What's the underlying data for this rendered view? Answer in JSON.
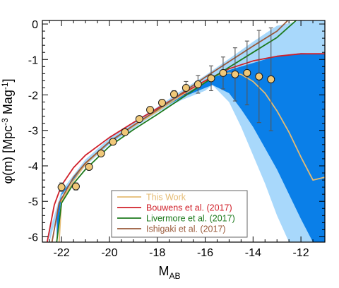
{
  "chart_data": {
    "type": "line",
    "title": "",
    "xlabel": {
      "main": "M",
      "sub": "AB"
    },
    "ylabel": {
      "pre": "φ(m) [Mpc",
      "sup1": "-3",
      "mid": " Mag",
      "sup2": "-1",
      "post": "]"
    },
    "xlim": [
      -22.8,
      -11
    ],
    "ylim": [
      -6.15,
      0.1
    ],
    "x_ticks": [
      -22,
      -20,
      -18,
      -16,
      -14,
      -12
    ],
    "y_ticks": [
      0,
      -1,
      -2,
      -3,
      -4,
      -5,
      -6
    ],
    "x_tick_labels": [
      "-22",
      "-20",
      "-18",
      "-16",
      "-14",
      "-12"
    ],
    "y_tick_labels": [
      "0",
      "-1",
      "-2",
      "-3",
      "-4",
      "-5",
      "-6"
    ],
    "grid": false,
    "legend_position": "lower-center",
    "bands": [
      {
        "color": "#a8d8fb",
        "upper": [
          [
            -22.5,
            -5.85
          ],
          [
            -22,
            -4.7
          ],
          [
            -21,
            -3.82
          ],
          [
            -20,
            -3.22
          ],
          [
            -19,
            -2.76
          ],
          [
            -18,
            -2.34
          ],
          [
            -17,
            -1.88
          ],
          [
            -16,
            -1.45
          ],
          [
            -15,
            -0.98
          ],
          [
            -14,
            -0.5
          ],
          [
            -13,
            -0.05
          ],
          [
            -12,
            0.1
          ],
          [
            -11,
            0.1
          ]
        ],
        "lower": [
          [
            -22.5,
            -6.15
          ],
          [
            -22,
            -4.85
          ],
          [
            -21,
            -4.0
          ],
          [
            -20,
            -3.4
          ],
          [
            -19,
            -2.95
          ],
          [
            -18,
            -2.5
          ],
          [
            -17,
            -2.15
          ],
          [
            -16,
            -1.88
          ],
          [
            -15.7,
            -1.72
          ],
          [
            -15,
            -2.2
          ],
          [
            -14.5,
            -2.9
          ],
          [
            -14,
            -3.7
          ],
          [
            -13.5,
            -4.5
          ],
          [
            -13,
            -5.4
          ],
          [
            -12.5,
            -6.15
          ],
          [
            -11,
            -6.15
          ]
        ]
      },
      {
        "color": "#0a7fe8",
        "upper": [
          [
            -22.2,
            -5.35
          ],
          [
            -22,
            -4.78
          ],
          [
            -21,
            -3.92
          ],
          [
            -20,
            -3.31
          ],
          [
            -19,
            -2.85
          ],
          [
            -18,
            -2.42
          ],
          [
            -17,
            -2.0
          ],
          [
            -16,
            -1.6
          ],
          [
            -15.5,
            -1.42
          ],
          [
            -15,
            -1.3
          ],
          [
            -14,
            -1.1
          ],
          [
            -13,
            -0.9
          ],
          [
            -12,
            -0.82
          ],
          [
            -11,
            -0.84
          ]
        ],
        "lower": [
          [
            -22.2,
            -6.15
          ],
          [
            -22,
            -4.82
          ],
          [
            -21,
            -3.96
          ],
          [
            -20,
            -3.36
          ],
          [
            -19,
            -2.9
          ],
          [
            -18,
            -2.45
          ],
          [
            -17,
            -2.08
          ],
          [
            -16,
            -1.8
          ],
          [
            -15.7,
            -1.72
          ],
          [
            -15,
            -1.95
          ],
          [
            -14.5,
            -2.4
          ],
          [
            -14,
            -2.9
          ],
          [
            -13.5,
            -3.5
          ],
          [
            -13,
            -4.1
          ],
          [
            -12.5,
            -4.8
          ],
          [
            -12,
            -5.5
          ],
          [
            -11.5,
            -6.15
          ],
          [
            -11,
            -6.15
          ]
        ]
      }
    ],
    "series": [
      {
        "name": "This Work",
        "color": "#e5bb72",
        "points": [
          [
            -22.1,
            -6.15
          ],
          [
            -22,
            -5.0
          ],
          [
            -21.5,
            -4.42
          ],
          [
            -21,
            -3.95
          ],
          [
            -20,
            -3.32
          ],
          [
            -19,
            -2.88
          ],
          [
            -18,
            -2.46
          ],
          [
            -17,
            -2.02
          ],
          [
            -16,
            -1.62
          ],
          [
            -15.5,
            -1.44
          ],
          [
            -15,
            -1.38
          ],
          [
            -14.5,
            -1.42
          ],
          [
            -14,
            -1.62
          ],
          [
            -13.5,
            -1.95
          ],
          [
            -13,
            -2.45
          ],
          [
            -12.5,
            -3.05
          ],
          [
            -12,
            -3.75
          ],
          [
            -11.5,
            -4.4
          ],
          [
            -11,
            -4.32
          ]
        ]
      },
      {
        "name": "Bouwens et al. (2017)",
        "color": "#d0202a",
        "points": [
          [
            -22.6,
            -6.15
          ],
          [
            -22.3,
            -5.1
          ],
          [
            -22,
            -4.55
          ],
          [
            -21.5,
            -4.05
          ],
          [
            -21,
            -3.7
          ],
          [
            -20,
            -3.2
          ],
          [
            -19,
            -2.78
          ],
          [
            -18,
            -2.38
          ],
          [
            -17,
            -1.98
          ],
          [
            -16,
            -1.6
          ],
          [
            -15,
            -1.26
          ],
          [
            -14,
            -1.04
          ],
          [
            -13,
            -0.91
          ],
          [
            -12,
            -0.84
          ],
          [
            -11,
            -0.84
          ]
        ]
      },
      {
        "name": "Livermore et al. (2017)",
        "color": "#1d7a1d",
        "points": [
          [
            -22.2,
            -6.15
          ],
          [
            -22,
            -5.05
          ],
          [
            -21.5,
            -4.5
          ],
          [
            -21,
            -4.1
          ],
          [
            -20,
            -3.45
          ],
          [
            -19,
            -2.98
          ],
          [
            -18,
            -2.55
          ],
          [
            -17,
            -2.1
          ],
          [
            -16,
            -1.65
          ],
          [
            -15,
            -1.22
          ],
          [
            -14,
            -0.8
          ],
          [
            -13,
            -0.38
          ],
          [
            -12.2,
            0.1
          ]
        ]
      },
      {
        "name": "Ishigaki et al. (2017)",
        "color": "#9a5a3a",
        "points": [
          [
            -22.4,
            -6.15
          ],
          [
            -22.1,
            -5.05
          ],
          [
            -21.5,
            -4.32
          ],
          [
            -21,
            -3.92
          ],
          [
            -20,
            -3.32
          ],
          [
            -19,
            -2.86
          ],
          [
            -18,
            -2.42
          ],
          [
            -17,
            -1.96
          ],
          [
            -16,
            -1.5
          ],
          [
            -15,
            -1.06
          ],
          [
            -14,
            -0.62
          ],
          [
            -13,
            -0.2
          ],
          [
            -12.55,
            0.1
          ]
        ]
      }
    ],
    "data_points": {
      "color": "#f0c878",
      "edge": "#1a1a1a",
      "points": [
        {
          "x": -22.0,
          "y": -4.6,
          "err": 0.12
        },
        {
          "x": -21.4,
          "y": -4.58,
          "err": 0.1
        },
        {
          "x": -20.85,
          "y": -4.03,
          "err": 0.09
        },
        {
          "x": -20.35,
          "y": -3.65,
          "err": 0.08
        },
        {
          "x": -19.85,
          "y": -3.32,
          "err": 0.07
        },
        {
          "x": -19.35,
          "y": -3.05,
          "err": 0.06
        },
        {
          "x": -18.75,
          "y": -2.68,
          "err": 0.06
        },
        {
          "x": -18.3,
          "y": -2.42,
          "err": 0.06
        },
        {
          "x": -17.8,
          "y": -2.22,
          "err": 0.07
        },
        {
          "x": -17.3,
          "y": -1.98,
          "err": 0.1
        },
        {
          "x": -16.8,
          "y": -1.8,
          "err": 0.18
        },
        {
          "x": -16.3,
          "y": -1.7,
          "err": 0.25
        },
        {
          "x": -15.75,
          "y": -1.53,
          "err": 0.35
        },
        {
          "x": -15.25,
          "y": -1.38,
          "err": 0.45
        },
        {
          "x": -14.75,
          "y": -1.42,
          "err": 0.75
        },
        {
          "x": -14.25,
          "y": -1.38,
          "err": 0.9
        },
        {
          "x": -13.75,
          "y": -1.48,
          "err": 1.3
        },
        {
          "x": -13.25,
          "y": -1.56,
          "err": 1.45
        }
      ]
    },
    "legend": [
      {
        "label": "This Work",
        "color": "#e5bb72"
      },
      {
        "label": "Bouwens et al. (2017)",
        "color": "#d0202a"
      },
      {
        "label": "Livermore et al. (2017)",
        "color": "#1d7a1d"
      },
      {
        "label": "Ishigaki et al. (2017)",
        "color": "#9a5a3a"
      }
    ]
  }
}
